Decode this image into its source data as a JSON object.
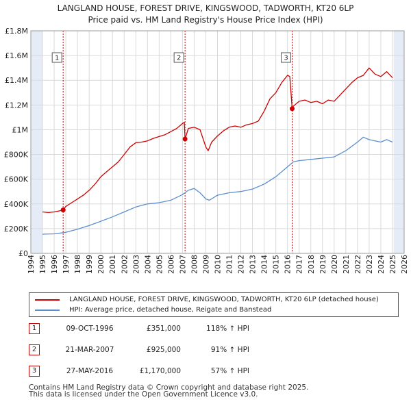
{
  "title": {
    "line1": "LANGLAND HOUSE, FOREST DRIVE, KINGSWOOD, TADWORTH, KT20 6LP",
    "line2": "Price paid vs. HM Land Registry's House Price Index (HPI)"
  },
  "colors": {
    "property": "#cc0000",
    "hpi": "#5b8ecf",
    "shade": "#e6ecf7",
    "grid": "#d9d9d9",
    "marker": "#cc0000"
  },
  "chart_data": {
    "type": "line",
    "title": "LANGLAND HOUSE, FOREST DRIVE, KINGSWOOD, TADWORTH, KT20 6LP — Price paid vs. HM Land Registry's House Price Index (HPI)",
    "xlabel": "",
    "ylabel": "",
    "xlim": [
      1994,
      2026
    ],
    "ylim": [
      0,
      1800000
    ],
    "grid": true,
    "legend_position": "below",
    "y_ticks": [
      0,
      200000,
      400000,
      600000,
      800000,
      1000000,
      1200000,
      1400000,
      1600000,
      1800000
    ],
    "y_tick_labels": [
      "£0",
      "£200K",
      "£400K",
      "£600K",
      "£800K",
      "£1M",
      "£1.2M",
      "£1.4M",
      "£1.6M",
      "£1.8M"
    ],
    "x_ticks": [
      1994,
      1995,
      1996,
      1997,
      1998,
      1999,
      2000,
      2001,
      2002,
      2003,
      2004,
      2005,
      2006,
      2007,
      2008,
      2009,
      2010,
      2011,
      2012,
      2013,
      2014,
      2015,
      2016,
      2017,
      2018,
      2019,
      2020,
      2021,
      2022,
      2023,
      2024,
      2025,
      2026
    ],
    "x_tick_labels": [
      "1994",
      "1995",
      "1996",
      "1997",
      "1998",
      "1999",
      "2000",
      "2001",
      "2002",
      "2003",
      "2004",
      "2005",
      "2006",
      "2007",
      "2008",
      "2009",
      "2010",
      "2011",
      "2012",
      "2013",
      "2014",
      "2015",
      "2016",
      "2017",
      "2018",
      "2019",
      "2020",
      "2021",
      "2022",
      "2023",
      "2024",
      "2025",
      "2026"
    ],
    "shaded_ranges": [
      [
        1994,
        1995.0
      ],
      [
        2025.1,
        2026
      ]
    ],
    "series": [
      {
        "name": "LANGLAND HOUSE, FOREST DRIVE, KINGSWOOD, TADWORTH, KT20 6LP (detached house)",
        "color": "#cc0000",
        "x": [
          1995.0,
          1995.5,
          1996.0,
          1996.5,
          1996.77,
          1997.0,
          1997.5,
          1998.0,
          1998.5,
          1999.0,
          1999.5,
          2000.0,
          2000.5,
          2001.0,
          2001.5,
          2002.0,
          2002.5,
          2003.0,
          2003.5,
          2004.0,
          2004.5,
          2005.0,
          2005.5,
          2006.0,
          2006.5,
          2007.0,
          2007.15,
          2007.22,
          2007.5,
          2008.0,
          2008.5,
          2009.0,
          2009.2,
          2009.5,
          2010.0,
          2010.5,
          2011.0,
          2011.5,
          2012.0,
          2012.5,
          2013.0,
          2013.5,
          2014.0,
          2014.5,
          2015.0,
          2015.5,
          2016.0,
          2016.2,
          2016.4,
          2016.5,
          2017.0,
          2017.5,
          2018.0,
          2018.5,
          2019.0,
          2019.5,
          2020.0,
          2020.5,
          2021.0,
          2021.5,
          2022.0,
          2022.5,
          2023.0,
          2023.5,
          2024.0,
          2024.5,
          2025.0
        ],
        "values": [
          335000,
          330000,
          335000,
          345000,
          351000,
          380000,
          410000,
          440000,
          470000,
          510000,
          560000,
          620000,
          660000,
          700000,
          740000,
          800000,
          860000,
          895000,
          900000,
          910000,
          930000,
          945000,
          960000,
          985000,
          1010000,
          1050000,
          1060000,
          925000,
          1010000,
          1020000,
          1000000,
          860000,
          830000,
          900000,
          950000,
          990000,
          1020000,
          1030000,
          1020000,
          1040000,
          1050000,
          1070000,
          1150000,
          1250000,
          1300000,
          1380000,
          1440000,
          1430000,
          1170000,
          1190000,
          1230000,
          1240000,
          1220000,
          1230000,
          1210000,
          1240000,
          1230000,
          1280000,
          1330000,
          1380000,
          1420000,
          1440000,
          1500000,
          1450000,
          1430000,
          1470000,
          1420000
        ]
      },
      {
        "name": "HPI: Average price, detached house, Reigate and Banstead",
        "color": "#5b8ecf",
        "x": [
          1995.0,
          1996.0,
          1997.0,
          1998.0,
          1999.0,
          2000.0,
          2001.0,
          2002.0,
          2003.0,
          2004.0,
          2005.0,
          2006.0,
          2007.0,
          2007.5,
          2008.0,
          2008.5,
          2009.0,
          2009.3,
          2010.0,
          2011.0,
          2012.0,
          2013.0,
          2014.0,
          2015.0,
          2016.0,
          2016.5,
          2017.0,
          2018.0,
          2019.0,
          2020.0,
          2021.0,
          2022.0,
          2022.5,
          2023.0,
          2023.5,
          2024.0,
          2024.5,
          2025.0
        ],
        "values": [
          155000,
          158000,
          170000,
          195000,
          225000,
          260000,
          295000,
          335000,
          375000,
          400000,
          410000,
          430000,
          475000,
          510000,
          525000,
          490000,
          440000,
          430000,
          470000,
          490000,
          500000,
          520000,
          560000,
          620000,
          700000,
          740000,
          750000,
          760000,
          770000,
          780000,
          830000,
          900000,
          940000,
          920000,
          910000,
          900000,
          920000,
          900000
        ]
      }
    ],
    "annotations": [
      {
        "label": "1",
        "x": 1996.77,
        "y": 351000
      },
      {
        "label": "2",
        "x": 2007.22,
        "y": 925000
      },
      {
        "label": "3",
        "x": 2016.4,
        "y": 1170000
      }
    ]
  },
  "legend": {
    "property_label": "LANGLAND HOUSE, FOREST DRIVE, KINGSWOOD, TADWORTH, KT20 6LP (detached house)",
    "hpi_label": "HPI: Average price, detached house, Reigate and Banstead"
  },
  "transactions": [
    {
      "num": "1",
      "date": "09-OCT-1996",
      "price": "£351,000",
      "hpi": "118% ↑ HPI"
    },
    {
      "num": "2",
      "date": "21-MAR-2007",
      "price": "£925,000",
      "hpi": "91% ↑ HPI"
    },
    {
      "num": "3",
      "date": "27-MAY-2016",
      "price": "£1,170,000",
      "hpi": "57% ↑ HPI"
    }
  ],
  "footer": {
    "line1": "Contains HM Land Registry data © Crown copyright and database right 2025.",
    "line2": "This data is licensed under the Open Government Licence v3.0."
  }
}
